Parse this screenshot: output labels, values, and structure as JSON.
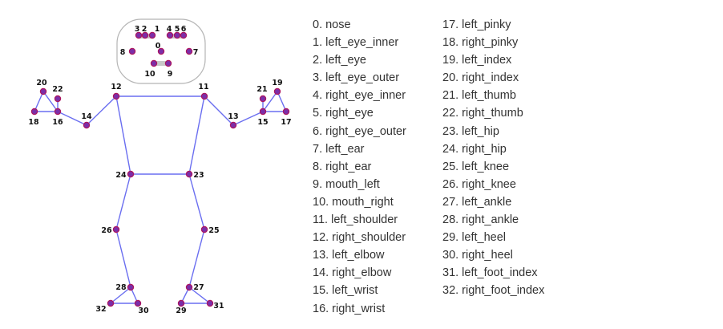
{
  "colors": {
    "bone": "#6a6ef0",
    "joint_outer": "#ab1560",
    "joint_inner": "#7b2ea8",
    "face_outline": "#b5b5b5",
    "eye_bar": "#c8c8c8"
  },
  "landmarks": [
    {
      "id": 0,
      "text": "0. nose"
    },
    {
      "id": 1,
      "text": "1. left_eye_inner"
    },
    {
      "id": 2,
      "text": "2. left_eye"
    },
    {
      "id": 3,
      "text": "3. left_eye_outer"
    },
    {
      "id": 4,
      "text": "4. right_eye_inner"
    },
    {
      "id": 5,
      "text": "5. right_eye"
    },
    {
      "id": 6,
      "text": "6. right_eye_outer"
    },
    {
      "id": 7,
      "text": "7. left_ear"
    },
    {
      "id": 8,
      "text": "8. right_ear"
    },
    {
      "id": 9,
      "text": "9. mouth_left"
    },
    {
      "id": 10,
      "text": "10. mouth_right"
    },
    {
      "id": 11,
      "text": "11. left_shoulder"
    },
    {
      "id": 12,
      "text": "12. right_shoulder"
    },
    {
      "id": 13,
      "text": "13. left_elbow"
    },
    {
      "id": 14,
      "text": "14. right_elbow"
    },
    {
      "id": 15,
      "text": "15. left_wrist"
    },
    {
      "id": 16,
      "text": "16. right_wrist"
    },
    {
      "id": 17,
      "text": "17. left_pinky"
    },
    {
      "id": 18,
      "text": "18. right_pinky"
    },
    {
      "id": 19,
      "text": "19. left_index"
    },
    {
      "id": 20,
      "text": "20. right_index"
    },
    {
      "id": 21,
      "text": "21. left_thumb"
    },
    {
      "id": 22,
      "text": "22. right_thumb"
    },
    {
      "id": 23,
      "text": "23. left_hip"
    },
    {
      "id": 24,
      "text": "24. right_hip"
    },
    {
      "id": 25,
      "text": "25. left_knee"
    },
    {
      "id": 26,
      "text": "26. right_knee"
    },
    {
      "id": 27,
      "text": "27. left_ankle"
    },
    {
      "id": 28,
      "text": "28. right_ankle"
    },
    {
      "id": 29,
      "text": "29. left_heel"
    },
    {
      "id": 30,
      "text": "30. right_heel"
    },
    {
      "id": 31,
      "text": "31. left_foot_index"
    },
    {
      "id": 32,
      "text": "32. right_foot_index"
    }
  ],
  "labels": [
    "0",
    "1",
    "2",
    "3",
    "4",
    "5",
    "6",
    "7",
    "8",
    "9",
    "10",
    "11",
    "12",
    "13",
    "14",
    "15",
    "16",
    "17",
    "18",
    "19",
    "20",
    "21",
    "22",
    "23",
    "24",
    "25",
    "26",
    "27",
    "28",
    "29",
    "30",
    "31",
    "32"
  ]
}
